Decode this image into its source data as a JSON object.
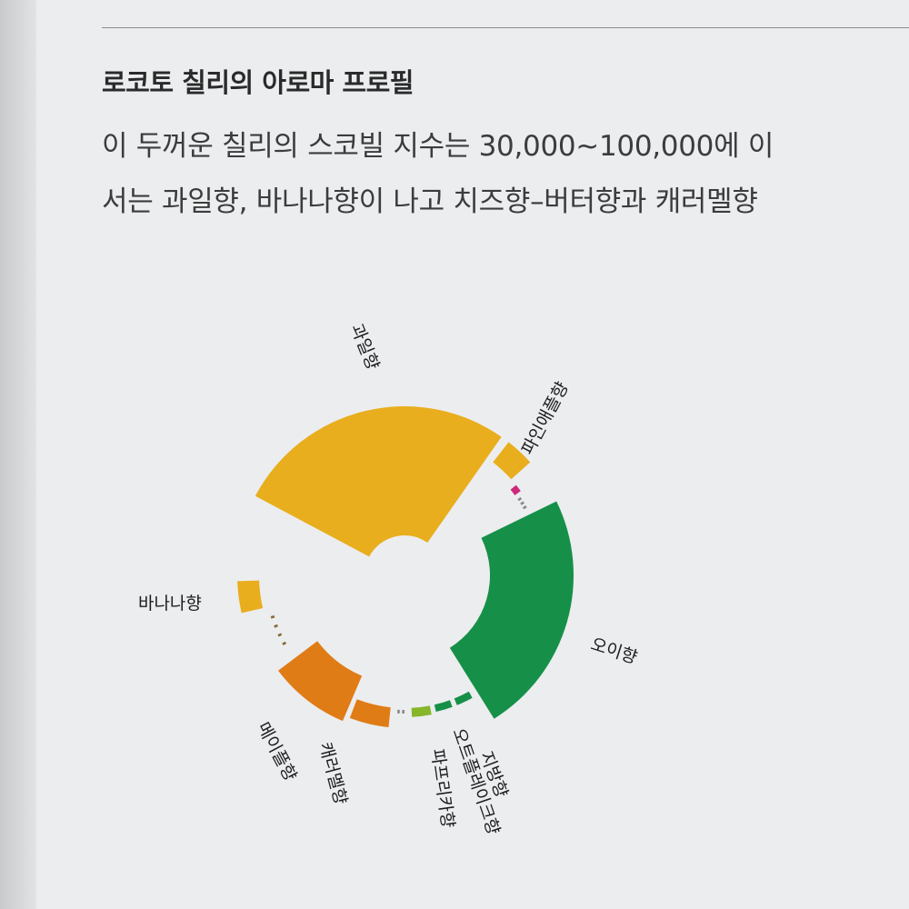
{
  "heading": "로코토 칠리의 아로마 프로필",
  "body_lines": [
    "이 두꺼운 칠리의 스코빌 지수는 30,000~100,000에 이",
    "서는 과일향, 바나나향이 나고 치즈향–버터향과 캐러멜향"
  ],
  "chart_data": {
    "type": "pie",
    "title": "",
    "segments": [
      {
        "label": "과일향",
        "value": 5,
        "color": "#e8ae1e"
      },
      {
        "label": "파인애플향",
        "value": 1,
        "color": "#e8ae1e"
      },
      {
        "label": "",
        "value": 0.3,
        "color": "#cc2a7a"
      },
      {
        "label": "",
        "value": 0.1,
        "color": "#8a8a8a"
      },
      {
        "label": "",
        "value": 0.1,
        "color": "#8a8a8a"
      },
      {
        "label": "",
        "value": 0.1,
        "color": "#8a8a8a"
      },
      {
        "label": "오이향",
        "value": 5,
        "color": "#169048"
      },
      {
        "label": "지방향",
        "value": 0.4,
        "color": "#169048"
      },
      {
        "label": "오트플레이크향",
        "value": 0.4,
        "color": "#169048"
      },
      {
        "label": "파프리카향",
        "value": 0.5,
        "color": "#86b62a"
      },
      {
        "label": "",
        "value": 0.1,
        "color": "#8a8a8a"
      },
      {
        "label": "",
        "value": 0.1,
        "color": "#8a8a8a"
      },
      {
        "label": "캐러멜향",
        "value": 1.5,
        "color": "#e07c16"
      },
      {
        "label": "메이플향",
        "value": 3,
        "color": "#e07c16"
      },
      {
        "label": "",
        "value": 0.1,
        "color": "#8a6a3a"
      },
      {
        "label": "",
        "value": 0.1,
        "color": "#8a6a3a"
      },
      {
        "label": "",
        "value": 0.1,
        "color": "#8a6a3a"
      },
      {
        "label": "",
        "value": 0.1,
        "color": "#8a6a3a"
      },
      {
        "label": "바나나향",
        "value": 1.5,
        "color": "#e8ae1e"
      }
    ]
  }
}
